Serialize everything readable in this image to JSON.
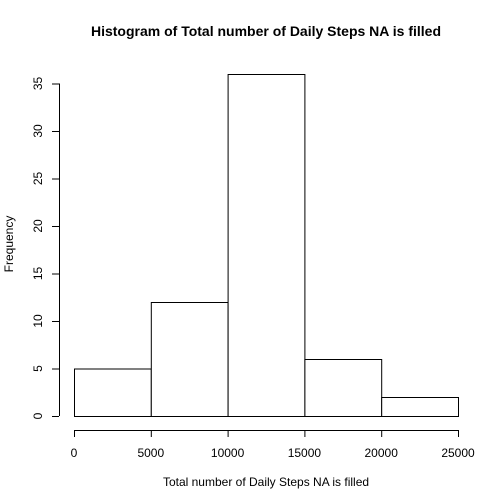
{
  "chart_data": {
    "type": "bar",
    "title": "Histogram of Total number of Daily Steps NA is filled",
    "xlabel": "Total number of Daily Steps NA is filled",
    "ylabel": "Frequency",
    "bins": [
      {
        "from": 0,
        "to": 5000,
        "count": 5
      },
      {
        "from": 5000,
        "to": 10000,
        "count": 12
      },
      {
        "from": 10000,
        "to": 15000,
        "count": 36
      },
      {
        "from": 15000,
        "to": 20000,
        "count": 6
      },
      {
        "from": 20000,
        "to": 25000,
        "count": 2
      }
    ],
    "xlim": [
      0,
      25000
    ],
    "ylim": [
      0,
      37
    ],
    "x_ticks": [
      0,
      5000,
      10000,
      15000,
      20000,
      25000
    ],
    "y_ticks": [
      0,
      5,
      10,
      15,
      20,
      25,
      30,
      35
    ],
    "grid": false,
    "colors": {
      "bar_fill": "#ffffff",
      "bar_stroke": "#000000"
    }
  }
}
